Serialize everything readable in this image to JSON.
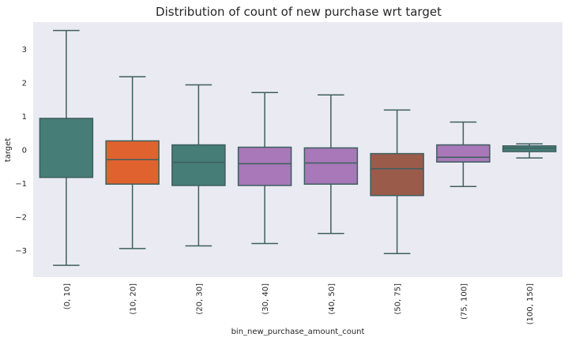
{
  "chart_data": {
    "type": "box",
    "title": "Distribution of count of new purchase wrt target",
    "xlabel": "bin_new_purchase_amount_count",
    "ylabel": "target",
    "ylim": [
      -3.8,
      3.8
    ],
    "yticks": [
      -3,
      -2,
      -1,
      0,
      1,
      2,
      3
    ],
    "ytick_labels": [
      "−3",
      "−2",
      "−1",
      "0",
      "1",
      "2",
      "3"
    ],
    "grid": false,
    "background": "#eaeaf2",
    "categories": [
      "(0, 10]",
      "(10, 20]",
      "(20, 30]",
      "(30, 40]",
      "(40, 50]",
      "(50, 75]",
      "(75, 100]",
      "(100, 150]"
    ],
    "boxes": [
      {
        "whisker_low": -3.45,
        "q1": -0.83,
        "median": -0.83,
        "q3": 0.93,
        "whisker_high": 3.55,
        "color": "#467d77"
      },
      {
        "whisker_low": -2.95,
        "q1": -1.03,
        "median": -0.3,
        "q3": 0.26,
        "whisker_high": 2.17,
        "color": "#e0622f"
      },
      {
        "whisker_low": -2.87,
        "q1": -1.07,
        "median": -0.38,
        "q3": 0.14,
        "whisker_high": 1.93,
        "color": "#467d77"
      },
      {
        "whisker_low": -2.8,
        "q1": -1.07,
        "median": -0.42,
        "q3": 0.07,
        "whisker_high": 1.7,
        "color": "#a878b8"
      },
      {
        "whisker_low": -2.5,
        "q1": -1.03,
        "median": -0.4,
        "q3": 0.05,
        "whisker_high": 1.63,
        "color": "#a878b8"
      },
      {
        "whisker_low": -3.1,
        "q1": -1.37,
        "median": -0.57,
        "q3": -0.12,
        "whisker_high": 1.18,
        "color": "#9a5b4b"
      },
      {
        "whisker_low": -1.1,
        "q1": -0.37,
        "median": -0.23,
        "q3": 0.14,
        "whisker_high": 0.82,
        "color": "#a878b8"
      },
      {
        "whisker_low": -0.25,
        "q1": -0.06,
        "median": 0.04,
        "q3": 0.11,
        "whisker_high": 0.17,
        "color": "#467d77"
      }
    ],
    "line_color": "#3d5f5e"
  }
}
